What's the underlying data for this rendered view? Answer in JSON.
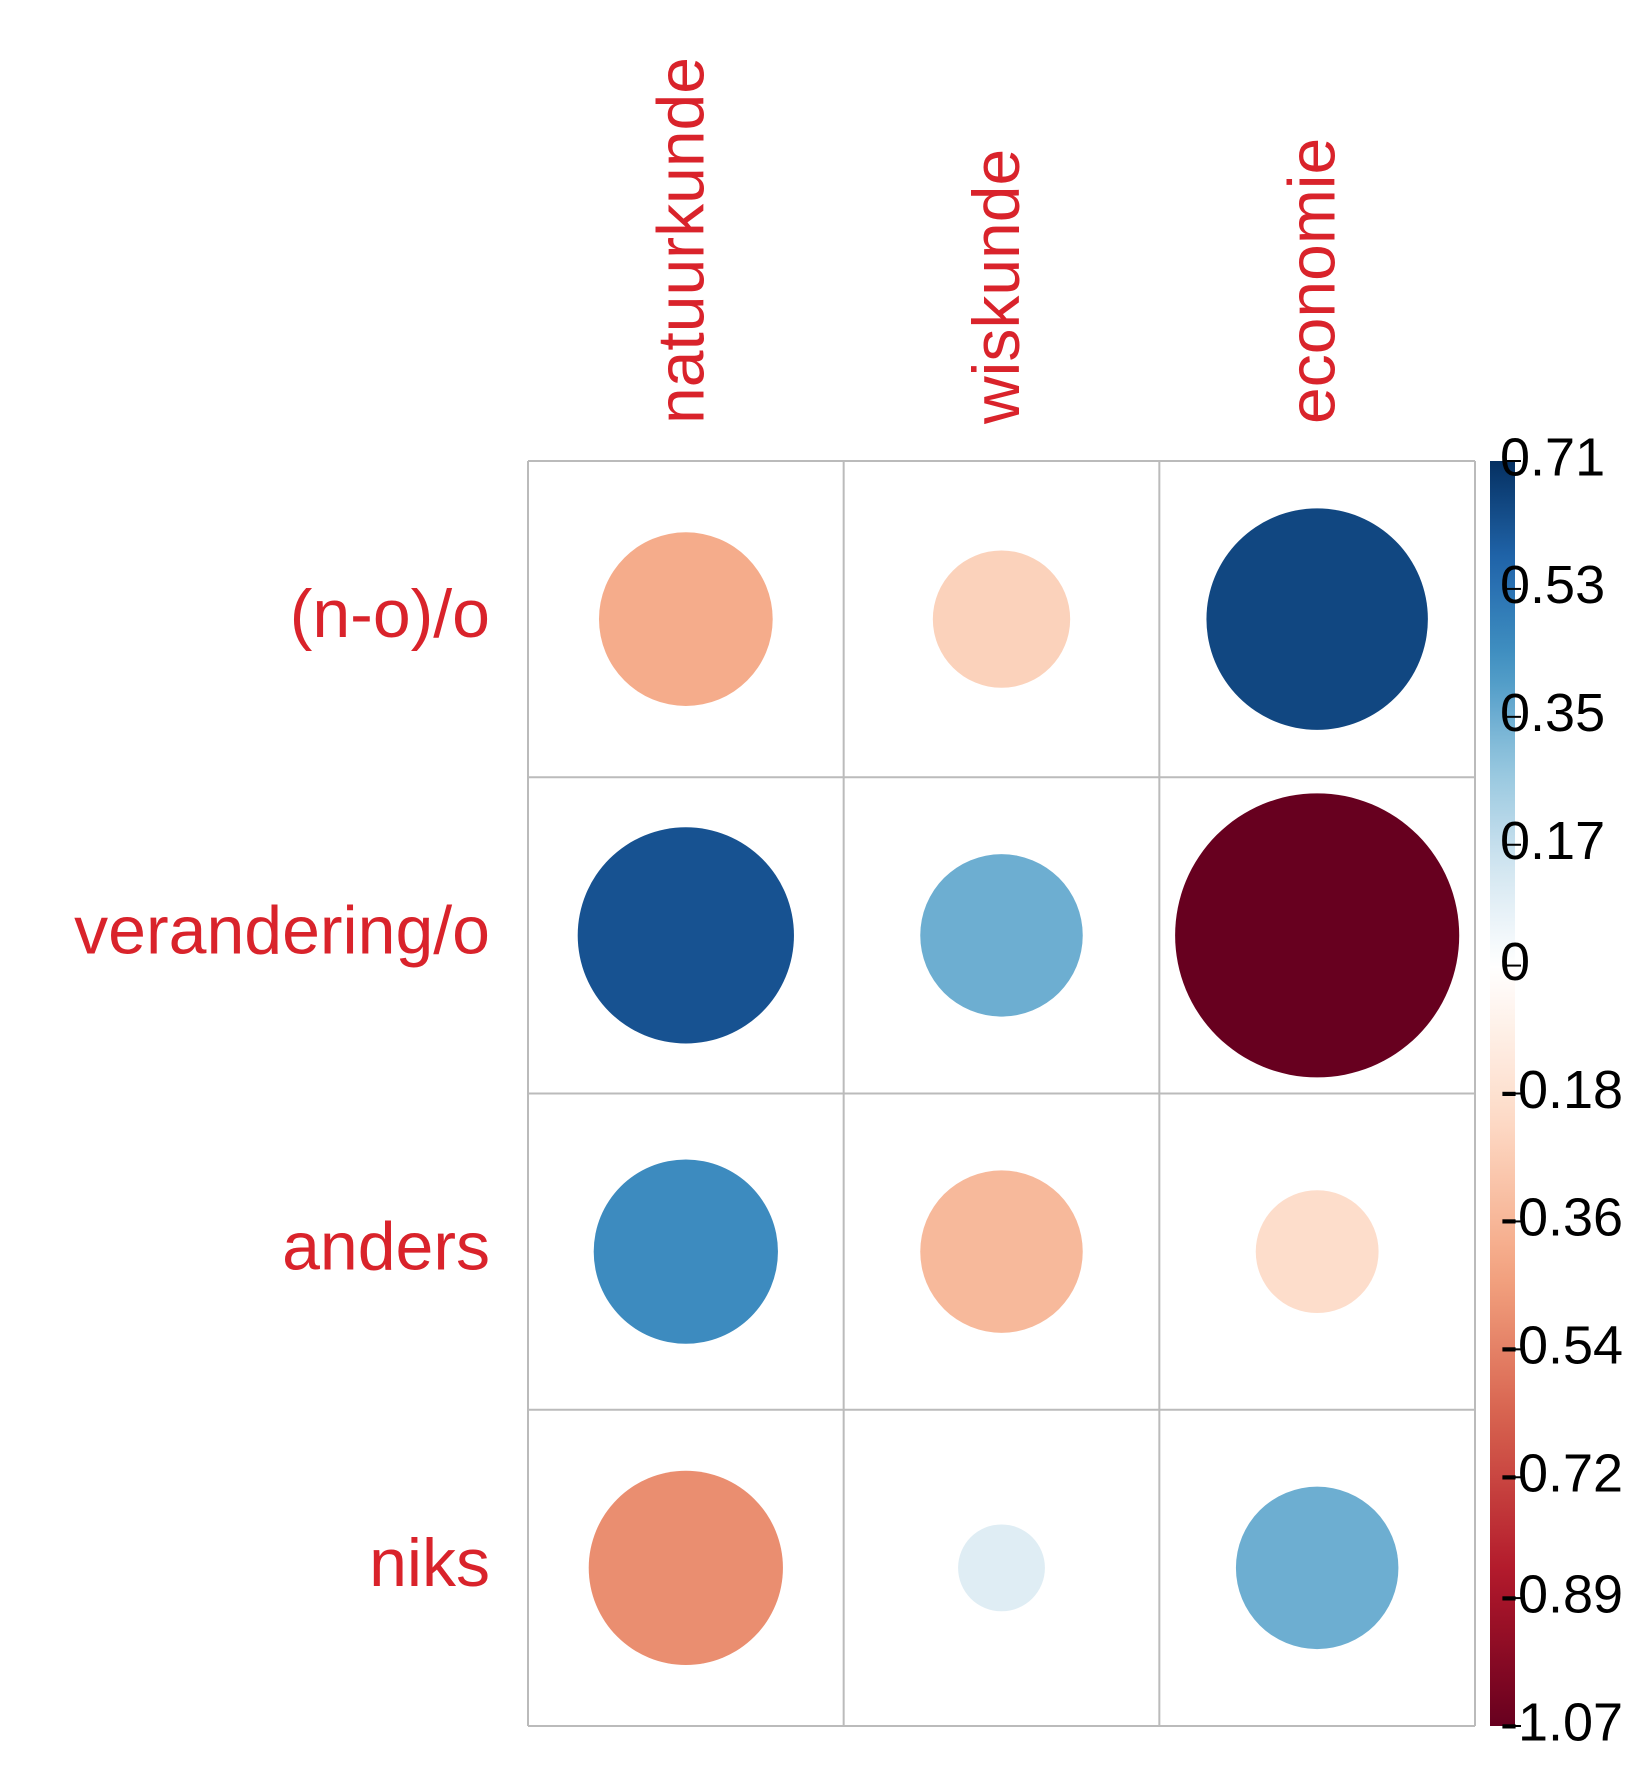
{
  "chart_data": {
    "type": "corrplot",
    "rows": [
      "(n-o)/o",
      "verandering/o",
      "anders",
      "niks"
    ],
    "columns": [
      "natuurkunde",
      "wiskunde",
      "economie"
    ],
    "values": [
      [
        -0.4,
        -0.25,
        0.65
      ],
      [
        0.62,
        0.35,
        -1.07
      ],
      [
        0.45,
        -0.35,
        -0.2
      ],
      [
        -0.5,
        0.1,
        0.35
      ]
    ],
    "ylim": [
      -1.07,
      0.71
    ],
    "yticks": [
      0.71,
      0.53,
      0.35,
      0.17,
      0,
      -0.18,
      -0.36,
      -0.54,
      -0.72,
      -0.89,
      -1.07
    ],
    "label_color": "#d9232b",
    "grid": true
  }
}
